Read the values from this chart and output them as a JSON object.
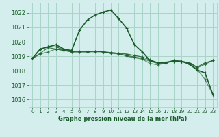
{
  "title": "Graphe pression niveau de la mer (hPa)",
  "background_color": "#d4eeee",
  "grid_color": "#aad4c8",
  "line_color": "#1a5c2a",
  "xlim": [
    -0.5,
    23.5
  ],
  "ylim": [
    1015.5,
    1022.7
  ],
  "yticks": [
    1016,
    1017,
    1018,
    1019,
    1020,
    1021,
    1022
  ],
  "xticks": [
    0,
    1,
    2,
    3,
    4,
    5,
    6,
    7,
    8,
    9,
    10,
    11,
    12,
    13,
    14,
    15,
    16,
    17,
    18,
    19,
    20,
    21,
    22,
    23
  ],
  "series": [
    [
      1018.85,
      1019.5,
      1019.65,
      1019.8,
      1019.5,
      1019.4,
      1020.8,
      1021.5,
      1021.85,
      1022.05,
      1022.2,
      1021.6,
      1020.95,
      1019.8,
      1019.3,
      1018.7,
      1018.55,
      1018.55,
      1018.7,
      1018.65,
      1018.45,
      1018.05,
      1017.85,
      1016.35
    ],
    [
      1018.85,
      1019.5,
      1019.65,
      1019.65,
      1019.45,
      1019.35,
      1019.35,
      1019.35,
      1019.35,
      1019.3,
      1019.25,
      1019.2,
      1019.15,
      1019.05,
      1018.95,
      1018.75,
      1018.55,
      1018.6,
      1018.65,
      1018.65,
      1018.55,
      1018.25,
      1018.55,
      1018.7
    ],
    [
      1018.85,
      1019.2,
      1019.6,
      1019.5,
      1019.4,
      1019.3,
      1019.3,
      1019.3,
      1019.35,
      1019.3,
      1019.2,
      1019.15,
      1019.05,
      1018.95,
      1018.85,
      1018.65,
      1018.5,
      1018.55,
      1018.65,
      1018.65,
      1018.55,
      1018.2,
      1018.45,
      1018.7
    ],
    [
      1018.85,
      1019.15,
      1019.3,
      1019.5,
      1019.4,
      1019.3,
      1019.3,
      1019.3,
      1019.3,
      1019.3,
      1019.25,
      1019.2,
      1019.0,
      1018.9,
      1018.8,
      1018.5,
      1018.4,
      1018.55,
      1018.7,
      1018.65,
      1018.5,
      1018.1,
      1017.4,
      1016.35
    ]
  ],
  "series_styles": [
    {
      "lw": 1.2,
      "alpha": 1.0,
      "zorder": 5
    },
    {
      "lw": 0.9,
      "alpha": 0.85,
      "zorder": 4
    },
    {
      "lw": 0.9,
      "alpha": 0.75,
      "zorder": 3
    },
    {
      "lw": 0.9,
      "alpha": 0.65,
      "zorder": 2
    }
  ]
}
